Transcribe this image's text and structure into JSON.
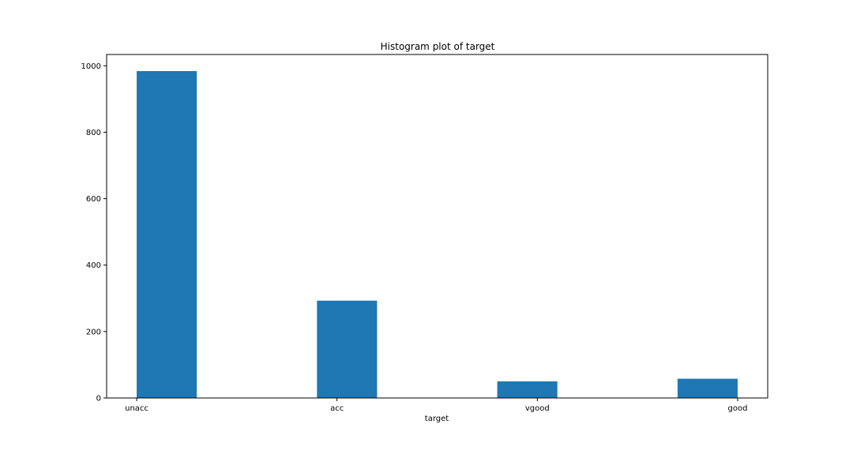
{
  "chart_data": {
    "type": "bar",
    "title": "Histogram plot of target",
    "xlabel": "target",
    "ylabel": "",
    "categories": [
      "unacc",
      "acc",
      "vgood",
      "good"
    ],
    "values": [
      984,
      293,
      50,
      58
    ],
    "ylim": [
      0,
      1034
    ],
    "yticks": [
      0,
      200,
      400,
      600,
      800,
      1000
    ],
    "grid": false,
    "legend": "none",
    "bar_color": "#1f77b4"
  }
}
